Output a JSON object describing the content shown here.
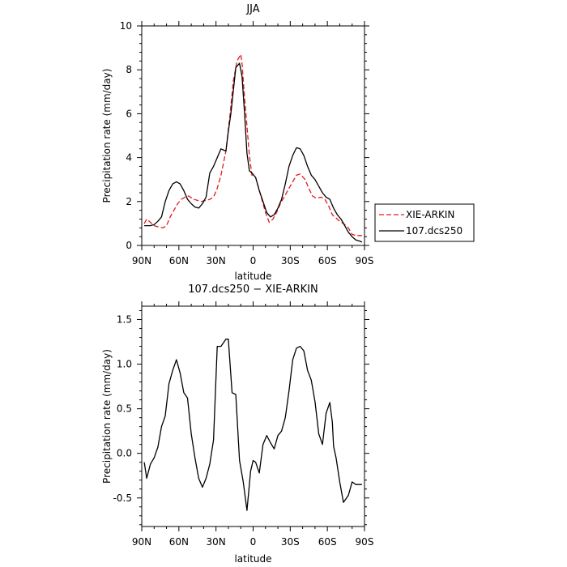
{
  "chart_data": [
    {
      "type": "line",
      "title": "JJA",
      "xlabel": "latitude",
      "ylabel": "Precipitation rate (mm/day)",
      "xlim": [
        90,
        -90
      ],
      "ylim": [
        0,
        10
      ],
      "x_ticks": [
        90,
        60,
        30,
        0,
        -30,
        -60,
        -90
      ],
      "x_tick_labels": [
        "90N",
        "60N",
        "30N",
        "0",
        "30S",
        "60S",
        "90S"
      ],
      "y_ticks": [
        0,
        2,
        4,
        6,
        8,
        10
      ],
      "y_tick_labels": [
        "0",
        "2",
        "4",
        "6",
        "8",
        "10"
      ],
      "grid": false,
      "legend": "right",
      "series": [
        {
          "name": "XIE-ARKIN",
          "color": "#e41a1c",
          "dash": "dashed",
          "x": [
            88,
            86,
            83,
            80,
            77,
            73,
            70,
            67,
            64,
            61,
            58,
            55,
            52,
            48,
            45,
            42,
            38,
            35,
            32,
            29,
            26,
            22,
            19,
            16,
            13,
            10,
            9,
            7,
            3,
            1,
            -2,
            -6,
            -10,
            -13,
            -16,
            -19,
            -22,
            -26,
            -29,
            -32,
            -35,
            -38,
            -42,
            -45,
            -48,
            -51,
            -55,
            -58,
            -61,
            -64,
            -67,
            -70,
            -73,
            -77,
            -80,
            -83,
            -86,
            -88
          ],
          "y": [
            1.0,
            1.2,
            1.05,
            0.9,
            0.85,
            0.8,
            0.9,
            1.3,
            1.6,
            1.9,
            2.1,
            2.2,
            2.25,
            2.1,
            2.05,
            2.0,
            2.05,
            2.1,
            2.2,
            2.6,
            3.2,
            4.3,
            5.8,
            7.5,
            8.4,
            8.7,
            8.3,
            6.8,
            4.1,
            3.2,
            3.1,
            2.3,
            1.5,
            1.05,
            1.2,
            1.5,
            1.9,
            2.3,
            2.6,
            2.9,
            3.2,
            3.25,
            3.0,
            2.6,
            2.25,
            2.15,
            2.2,
            2.1,
            1.8,
            1.4,
            1.25,
            1.1,
            1.0,
            0.8,
            0.5,
            0.45,
            0.45,
            0.45
          ]
        },
        {
          "name": "107.dcs250",
          "color": "#000000",
          "dash": "solid",
          "x": [
            88,
            83,
            80,
            77,
            74,
            71,
            68,
            65,
            62,
            59,
            56,
            53,
            50,
            47,
            44,
            41,
            38,
            35,
            32,
            29,
            26,
            22,
            20,
            18,
            14,
            11,
            9,
            7,
            5,
            3,
            1,
            -2,
            -5,
            -8,
            -11,
            -14,
            -17,
            -20,
            -23,
            -26,
            -29,
            -32,
            -35,
            -38,
            -41,
            -44,
            -47,
            -50,
            -53,
            -56,
            -59,
            -62,
            -65,
            -68,
            -71,
            -74,
            -77,
            -80,
            -83,
            -86,
            -88
          ],
          "y": [
            0.9,
            0.9,
            0.95,
            1.1,
            1.3,
            2.0,
            2.5,
            2.8,
            2.9,
            2.8,
            2.5,
            2.1,
            1.9,
            1.75,
            1.7,
            1.9,
            2.2,
            3.3,
            3.6,
            4.0,
            4.4,
            4.3,
            5.2,
            6.0,
            8.1,
            8.3,
            7.7,
            6.1,
            4.2,
            3.4,
            3.3,
            3.1,
            2.5,
            2.0,
            1.5,
            1.3,
            1.4,
            1.7,
            2.1,
            2.8,
            3.6,
            4.1,
            4.45,
            4.4,
            4.1,
            3.6,
            3.2,
            3.0,
            2.7,
            2.4,
            2.2,
            2.1,
            1.7,
            1.4,
            1.2,
            0.9,
            0.6,
            0.4,
            0.25,
            0.2,
            0.15
          ]
        }
      ]
    },
    {
      "type": "line",
      "title": "107.dcs250 − XIE-ARKIN",
      "xlabel": "latitude",
      "ylabel": "Precipitation rate (mm/day)",
      "xlim": [
        90,
        -90
      ],
      "ylim": [
        -0.82,
        1.65
      ],
      "x_ticks": [
        90,
        60,
        30,
        0,
        -30,
        -60,
        -90
      ],
      "x_tick_labels": [
        "90N",
        "60N",
        "30N",
        "0",
        "30S",
        "60S",
        "90S"
      ],
      "y_ticks": [
        -0.5,
        0,
        0.5,
        1.0,
        1.5
      ],
      "y_tick_labels": [
        "-0.5",
        "0.0",
        "0.5",
        "1.0",
        "1.5"
      ],
      "grid": false,
      "series": [
        {
          "color": "#000000",
          "dash": "solid",
          "x": [
            88,
            86,
            83,
            80,
            77,
            74,
            71,
            68,
            65,
            62,
            59,
            56,
            53,
            50,
            47,
            44,
            41,
            38,
            35,
            32,
            29,
            26,
            22,
            20,
            17,
            14,
            11,
            8,
            5,
            2,
            0,
            -2,
            -5,
            -8,
            -11,
            -14,
            -17,
            -20,
            -23,
            -26,
            -29,
            -32,
            -35,
            -38,
            -41,
            -44,
            -47,
            -50,
            -53,
            -56,
            -59,
            -62,
            -64,
            -65,
            -67,
            -70,
            -73,
            -77,
            -80,
            -83,
            -86,
            -88
          ],
          "y": [
            -0.1,
            -0.28,
            -0.12,
            -0.05,
            0.07,
            0.3,
            0.42,
            0.78,
            0.93,
            1.05,
            0.9,
            0.68,
            0.62,
            0.22,
            -0.05,
            -0.28,
            -0.38,
            -0.28,
            -0.12,
            0.15,
            1.2,
            1.2,
            1.28,
            1.28,
            0.68,
            0.66,
            -0.08,
            -0.32,
            -0.64,
            -0.2,
            -0.08,
            -0.1,
            -0.22,
            0.1,
            0.2,
            0.12,
            0.05,
            0.2,
            0.25,
            0.4,
            0.7,
            1.05,
            1.18,
            1.2,
            1.15,
            0.93,
            0.82,
            0.58,
            0.22,
            0.1,
            0.45,
            0.57,
            0.35,
            0.08,
            -0.05,
            -0.32,
            -0.55,
            -0.47,
            -0.32,
            -0.35,
            -0.35,
            -0.35
          ]
        }
      ]
    }
  ]
}
